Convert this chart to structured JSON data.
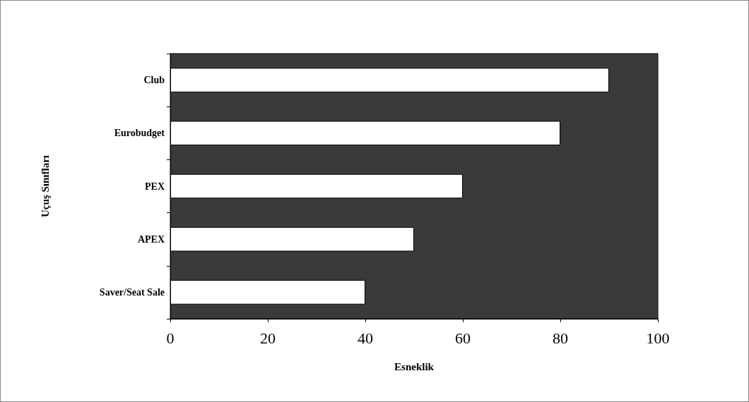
{
  "chart_data": {
    "type": "bar",
    "orientation": "horizontal",
    "xlabel": "Esneklik",
    "ylabel": "Uçuş Sınıfları",
    "categories": [
      "Club",
      "Eurobudget",
      "PEX",
      "APEX",
      "Saver/Seat Sale"
    ],
    "values": [
      90,
      80,
      60,
      50,
      40
    ],
    "color": "#ffffff",
    "xlim": [
      0,
      100
    ],
    "xticks": [
      0,
      20,
      40,
      60,
      80,
      100
    ],
    "grid": false
  }
}
